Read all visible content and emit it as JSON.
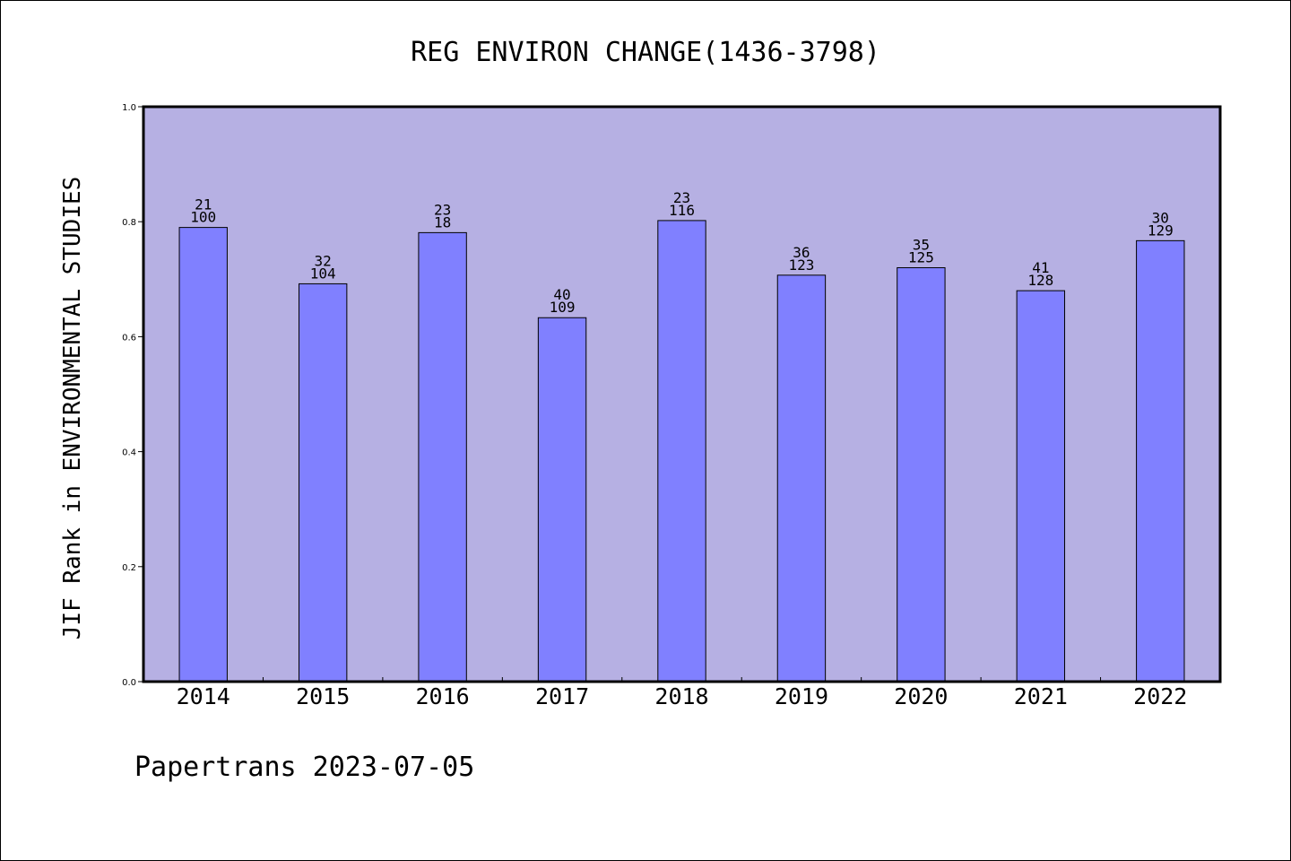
{
  "footer": "Papertrans 2023-07-05",
  "colors": {
    "plot_background": "#b6b0e3",
    "bar_fill": "#8080ff",
    "bar_stroke": "#000000",
    "page_background": "#ffffff"
  },
  "chart_data": {
    "type": "bar",
    "title": "REG ENVIRON CHANGE(1436-3798)",
    "xlabel": "",
    "ylabel": "JIF Rank in ENVIRONMENTAL STUDIES",
    "ylim": [
      0,
      1.0
    ],
    "y_ticks": [
      "0.0",
      "0.2",
      "0.4",
      "0.6",
      "0.8",
      "1.0"
    ],
    "grid": false,
    "categories": [
      "2014",
      "2015",
      "2016",
      "2017",
      "2018",
      "2019",
      "2020",
      "2021",
      "2022"
    ],
    "values": [
      0.79,
      0.692,
      0.781,
      0.633,
      0.802,
      0.707,
      0.72,
      0.68,
      0.767
    ],
    "labels_top": [
      "21",
      "32",
      "23",
      "40",
      "23",
      "36",
      "35",
      "41",
      "30"
    ],
    "labels_bottom": [
      "100",
      "104",
      "18",
      "109",
      "116",
      "123",
      "125",
      "128",
      "129"
    ]
  }
}
